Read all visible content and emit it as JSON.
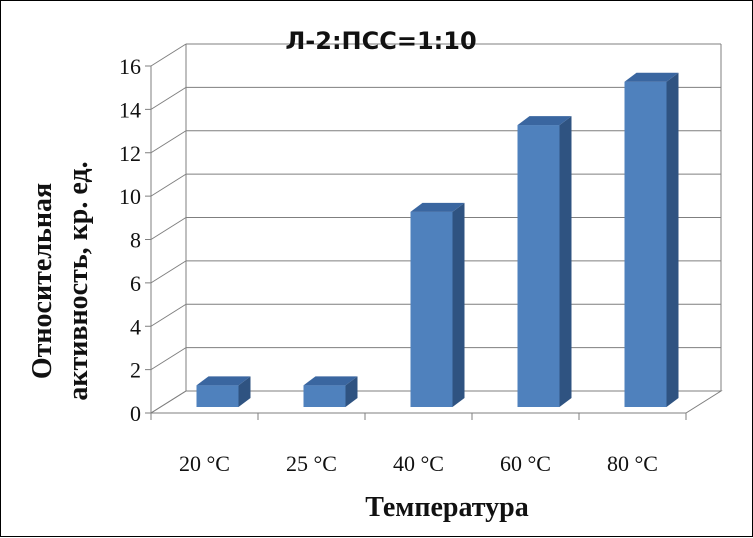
{
  "chart_data": {
    "type": "bar",
    "title": "Л-2:ПСС=1:10",
    "xlabel": "Температура",
    "ylabel_line1": "Относительная",
    "ylabel_line2": "активность, кр. ед.",
    "categories": [
      "20 °C",
      "25 °C",
      "40 °C",
      "60 °C",
      "80 °C"
    ],
    "values": [
      1,
      1,
      9,
      13,
      15
    ],
    "ylim": [
      0,
      16
    ],
    "yticks": [
      0,
      2,
      4,
      6,
      8,
      10,
      12,
      14,
      16
    ],
    "grid": true,
    "legend": "none",
    "style": "3d-column",
    "colors": {
      "front": "#4f81bd",
      "side": "#2f5381",
      "top": "#3a66a0",
      "grid": "#7f7f7f"
    }
  }
}
